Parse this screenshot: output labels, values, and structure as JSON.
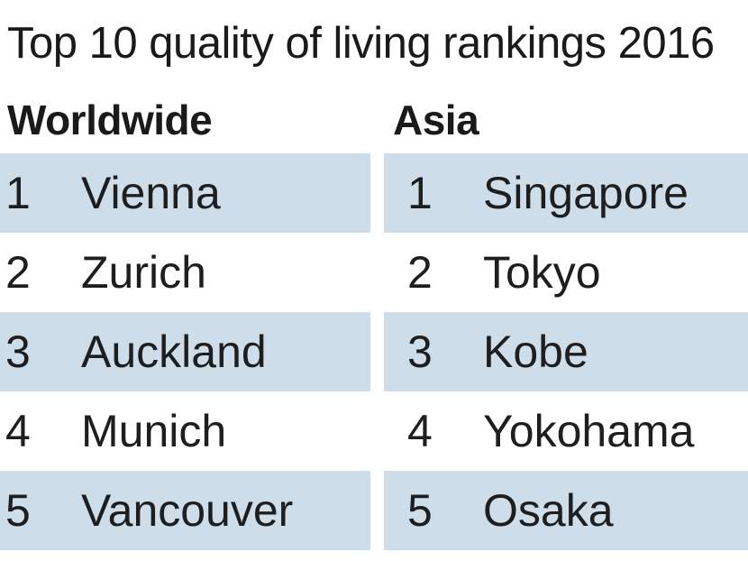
{
  "chart_data": {
    "type": "table",
    "title": "Top 10 quality of living rankings 2016",
    "columns": [
      {
        "header": "Worldwide",
        "rows": [
          {
            "rank": "1",
            "city": "Vienna"
          },
          {
            "rank": "2",
            "city": "Zurich"
          },
          {
            "rank": "3",
            "city": "Auckland"
          },
          {
            "rank": "4",
            "city": "Munich"
          },
          {
            "rank": "5",
            "city": "Vancouver"
          }
        ]
      },
      {
        "header": "Asia",
        "rows": [
          {
            "rank": "1",
            "city": "Singapore"
          },
          {
            "rank": "2",
            "city": "Tokyo"
          },
          {
            "rank": "3",
            "city": "Kobe"
          },
          {
            "rank": "4",
            "city": "Yokohama"
          },
          {
            "rank": "5",
            "city": "Osaka"
          }
        ]
      }
    ],
    "colors": {
      "shaded_row": "#cddde9",
      "text": "#1e1e1e"
    }
  }
}
